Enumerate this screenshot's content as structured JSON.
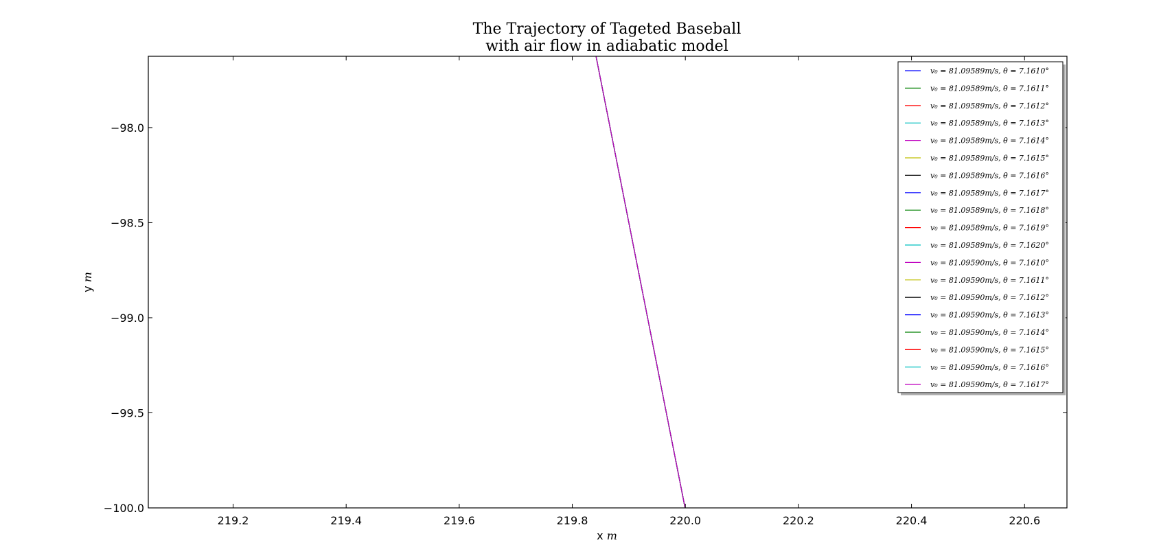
{
  "chart_data": {
    "type": "line",
    "title": [
      "The Trajectory of Tageted Baseball",
      "with air flow in adiabatic model"
    ],
    "xlabel": "x",
    "xlabel_unit": "m",
    "ylabel": "y",
    "ylabel_unit": "m",
    "xlim": [
      219.05,
      220.675
    ],
    "ylim": [
      -100.0,
      -97.625
    ],
    "xticks": [
      219.2,
      219.4,
      219.6,
      219.8,
      220.0,
      220.2,
      220.4,
      220.6
    ],
    "xtick_labels": [
      "219.2",
      "219.4",
      "219.6",
      "219.8",
      "220.0",
      "220.2",
      "220.4",
      "220.6"
    ],
    "yticks": [
      -98.0,
      -98.5,
      -99.0,
      -99.5,
      -100.0
    ],
    "ytick_labels": [
      "−98.0",
      "−98.5",
      "−99.0",
      "−99.5",
      "−100.0"
    ],
    "grid": false,
    "legend_position": "top-right",
    "series": [
      {
        "name": "v₀ = 81.09589m/s, θ = 7.1610°",
        "color": "#0000ff",
        "x": [
          219.842,
          219.9995
        ],
        "y": [
          -97.625,
          -100.0
        ]
      },
      {
        "name": "v₀ = 81.09589m/s, θ = 7.1611°",
        "color": "#008000",
        "x": [
          219.842,
          219.9995
        ],
        "y": [
          -97.625,
          -100.0
        ]
      },
      {
        "name": "v₀ = 81.09589m/s, θ = 7.1612°",
        "color": "#ff0000",
        "x": [
          219.842,
          219.9995
        ],
        "y": [
          -97.625,
          -100.0
        ]
      },
      {
        "name": "v₀ = 81.09589m/s, θ = 7.1613°",
        "color": "#00bfbf",
        "x": [
          219.842,
          219.9995
        ],
        "y": [
          -97.625,
          -100.0
        ]
      },
      {
        "name": "v₀ = 81.09589m/s, θ = 7.1614°",
        "color": "#bf00bf",
        "x": [
          219.842,
          219.9995
        ],
        "y": [
          -97.625,
          -100.0
        ]
      },
      {
        "name": "v₀ = 81.09589m/s, θ = 7.1615°",
        "color": "#bfbf00",
        "x": [
          219.842,
          219.9995
        ],
        "y": [
          -97.625,
          -100.0
        ]
      },
      {
        "name": "v₀ = 81.09589m/s, θ = 7.1616°",
        "color": "#000000",
        "x": [
          219.842,
          219.9995
        ],
        "y": [
          -97.625,
          -100.0
        ]
      },
      {
        "name": "v₀ = 81.09589m/s, θ = 7.1617°",
        "color": "#0000ff",
        "x": [
          219.842,
          219.9995
        ],
        "y": [
          -97.625,
          -100.0
        ]
      },
      {
        "name": "v₀ = 81.09589m/s, θ = 7.1618°",
        "color": "#008000",
        "x": [
          219.842,
          219.9995
        ],
        "y": [
          -97.625,
          -100.0
        ]
      },
      {
        "name": "v₀ = 81.09589m/s, θ = 7.1619°",
        "color": "#ff0000",
        "x": [
          219.842,
          219.9995
        ],
        "y": [
          -97.625,
          -100.0
        ]
      },
      {
        "name": "v₀ = 81.09589m/s, θ = 7.1620°",
        "color": "#00bfbf",
        "x": [
          219.842,
          219.9995
        ],
        "y": [
          -97.625,
          -100.0
        ]
      },
      {
        "name": "v₀ = 81.09590m/s, θ = 7.1610°",
        "color": "#bf00bf",
        "x": [
          219.842,
          219.9995
        ],
        "y": [
          -97.625,
          -100.0
        ]
      },
      {
        "name": "v₀ = 81.09590m/s, θ = 7.1611°",
        "color": "#bfbf00",
        "x": [
          219.842,
          219.9995
        ],
        "y": [
          -97.625,
          -100.0
        ]
      },
      {
        "name": "v₀ = 81.09590m/s, θ = 7.1612°",
        "color": "#000000",
        "x": [
          219.842,
          219.9995
        ],
        "y": [
          -97.625,
          -100.0
        ]
      },
      {
        "name": "v₀ = 81.09590m/s, θ = 7.1613°",
        "color": "#0000ff",
        "x": [
          219.842,
          219.9995
        ],
        "y": [
          -97.625,
          -100.0
        ]
      },
      {
        "name": "v₀ = 81.09590m/s, θ = 7.1614°",
        "color": "#008000",
        "x": [
          219.842,
          219.9995
        ],
        "y": [
          -97.625,
          -100.0
        ]
      },
      {
        "name": "v₀ = 81.09590m/s, θ = 7.1615°",
        "color": "#ff0000",
        "x": [
          219.842,
          219.9995
        ],
        "y": [
          -97.625,
          -100.0
        ]
      },
      {
        "name": "v₀ = 81.09590m/s, θ = 7.1616°",
        "color": "#00bfbf",
        "x": [
          219.842,
          219.9995
        ],
        "y": [
          -97.625,
          -100.0
        ]
      },
      {
        "name": "v₀ = 81.09590m/s, θ = 7.1617°",
        "color": "#bf00bf",
        "x": [
          219.842,
          219.9995
        ],
        "y": [
          -97.625,
          -100.0
        ]
      }
    ]
  }
}
